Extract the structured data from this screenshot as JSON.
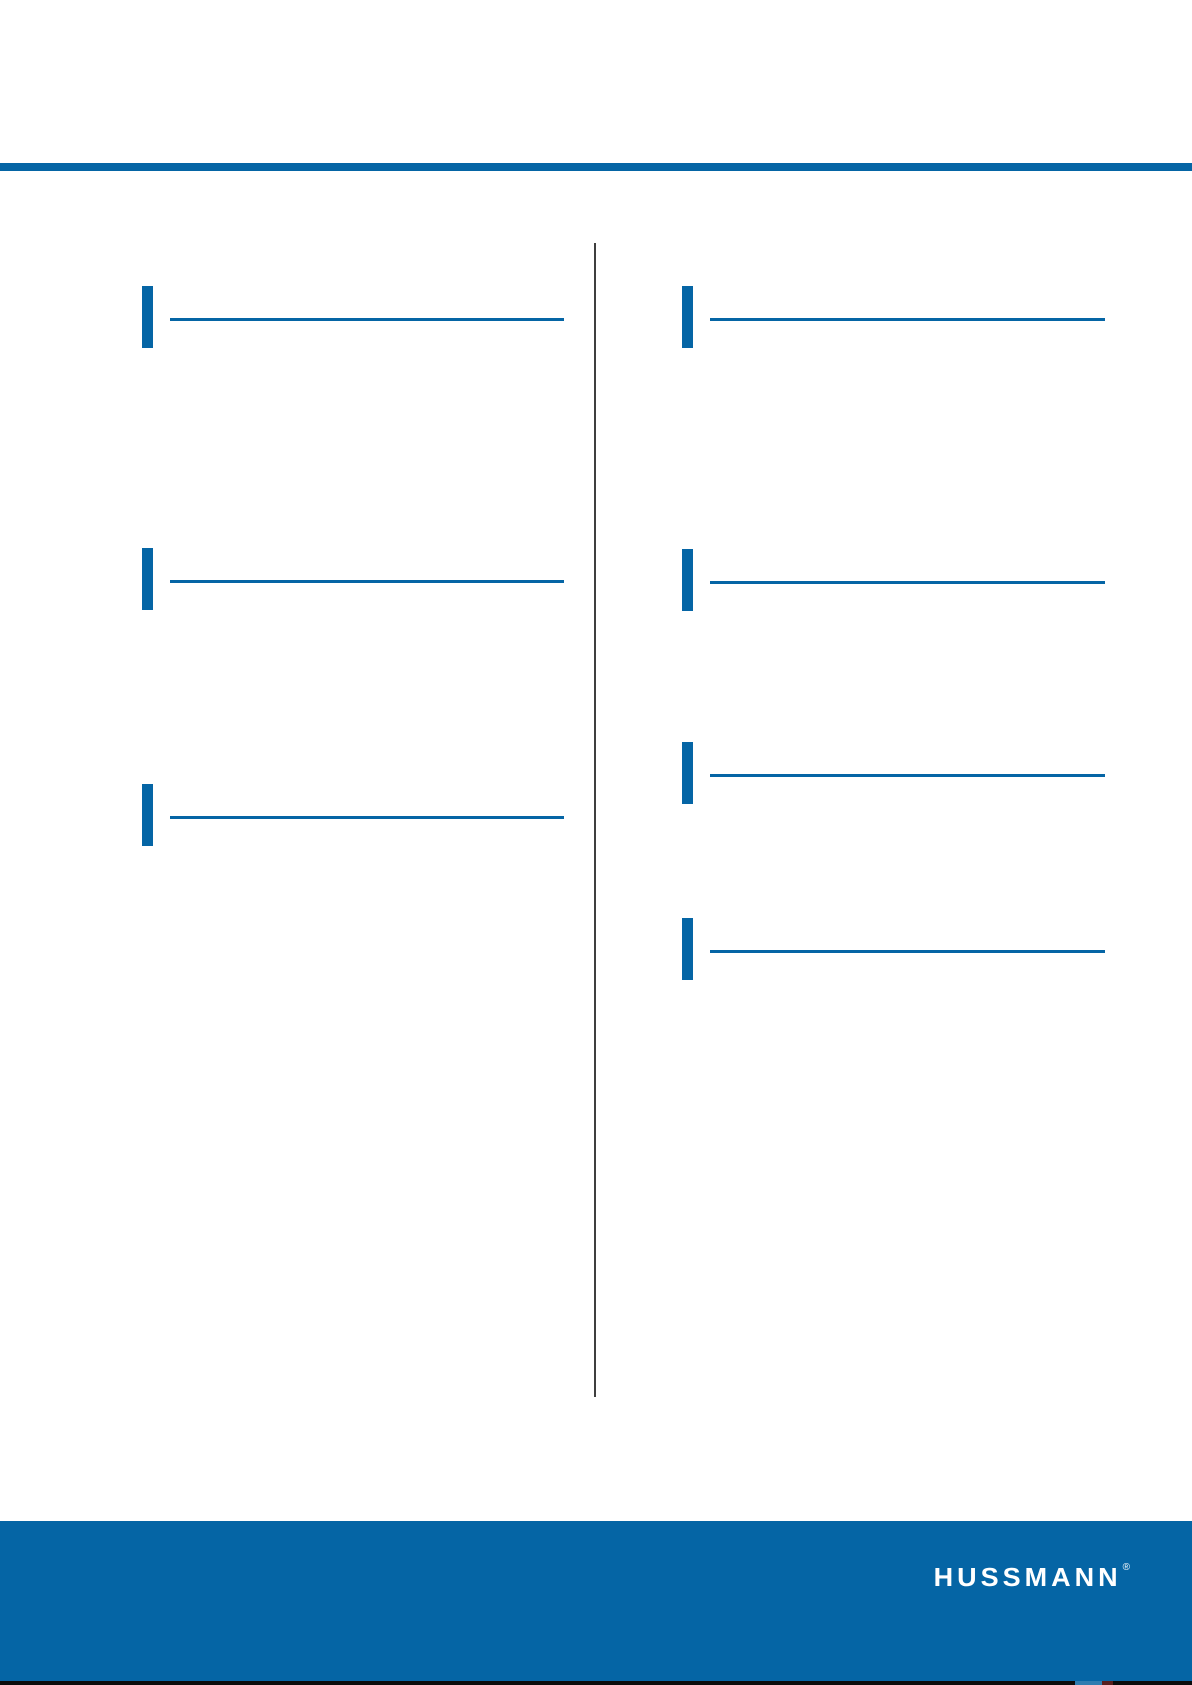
{
  "page": {
    "type": "document-page",
    "description": "Mostly blank two-column catalog/manual page with blue section heading markers, a center column divider, and a Hussmann footer band"
  },
  "colors": {
    "brand_blue": "#0565A5",
    "divider_gray": "#3F3F3F",
    "strip_black": "#0B0B0B",
    "strip_blue": "#2F7CB0",
    "strip_maroon": "#571E1E",
    "page_bg": "#FFFFFF",
    "logo_white": "#FFFFFF"
  },
  "footer": {
    "logo_text": "HUSSMANN",
    "registered_mark": "®"
  }
}
